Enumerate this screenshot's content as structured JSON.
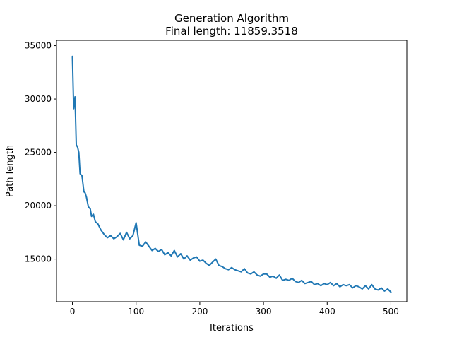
{
  "chart_data": {
    "type": "line",
    "title": "Generation Algorithm",
    "subtitle": "Final length: 11859.3518",
    "xlabel": "Iterations",
    "ylabel": "Path length",
    "xlim": [
      -25,
      525
    ],
    "ylim": [
      11000,
      35500
    ],
    "xticks": [
      0,
      100,
      200,
      300,
      400,
      500
    ],
    "yticks": [
      15000,
      20000,
      25000,
      30000,
      35000
    ],
    "grid": false,
    "legend": "none",
    "line_color": "#1f77b4",
    "series": [
      {
        "x": [
          0,
          2,
          4,
          6,
          8,
          10,
          12,
          15,
          18,
          20,
          22,
          25,
          28,
          30,
          33,
          36,
          40,
          45,
          50,
          55,
          60,
          65,
          70,
          75,
          80,
          85,
          90,
          95,
          100,
          105,
          110,
          115,
          120,
          125,
          130,
          135,
          140,
          145,
          150,
          155,
          160,
          165,
          170,
          175,
          180,
          185,
          190,
          195,
          200,
          205,
          210,
          215,
          220,
          225,
          230,
          235,
          240,
          245,
          250,
          255,
          260,
          265,
          270,
          275,
          280,
          285,
          290,
          295,
          300,
          305,
          310,
          315,
          320,
          325,
          330,
          335,
          340,
          345,
          350,
          355,
          360,
          365,
          370,
          375,
          380,
          385,
          390,
          395,
          400,
          405,
          410,
          415,
          420,
          425,
          430,
          435,
          440,
          445,
          450,
          455,
          460,
          465,
          470,
          475,
          480,
          485,
          490,
          495,
          500
        ],
        "y": [
          34000,
          29100,
          30200,
          25700,
          25500,
          25000,
          23000,
          22800,
          21300,
          21200,
          20800,
          19900,
          19700,
          19000,
          19200,
          18500,
          18300,
          17700,
          17300,
          17000,
          17200,
          16900,
          17100,
          17400,
          16800,
          17500,
          16900,
          17200,
          18400,
          16300,
          16200,
          16600,
          16200,
          15800,
          16000,
          15700,
          15900,
          15400,
          15600,
          15300,
          15800,
          15200,
          15500,
          15000,
          15300,
          14900,
          15100,
          15200,
          14800,
          14900,
          14600,
          14400,
          14700,
          15000,
          14400,
          14300,
          14100,
          14000,
          14200,
          14000,
          13900,
          13800,
          14100,
          13700,
          13600,
          13800,
          13500,
          13400,
          13600,
          13600,
          13300,
          13400,
          13200,
          13500,
          13000,
          13100,
          13000,
          13200,
          12900,
          12800,
          13000,
          12700,
          12800,
          12900,
          12600,
          12700,
          12500,
          12700,
          12600,
          12800,
          12500,
          12700,
          12400,
          12600,
          12500,
          12600,
          12300,
          12500,
          12400,
          12200,
          12500,
          12200,
          12600,
          12200,
          12100,
          12300,
          12000,
          12200,
          11900
        ]
      }
    ]
  }
}
